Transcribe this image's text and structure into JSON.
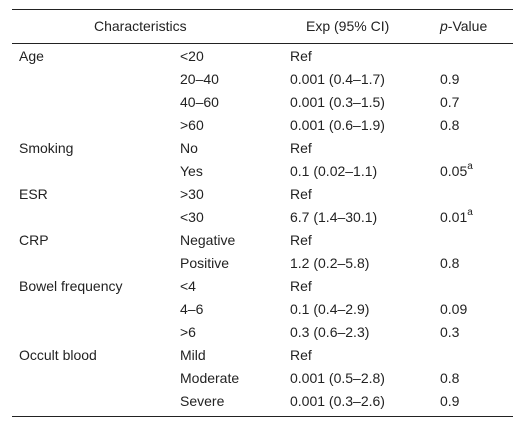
{
  "header": {
    "characteristics": "Characteristics",
    "exp": "Exp (95% CI)",
    "p_italic": "p",
    "p_rest": "-Value"
  },
  "rows": [
    {
      "group": "Age",
      "level": "<20",
      "exp": "Ref",
      "p": "",
      "sup": ""
    },
    {
      "group": "",
      "level": "20–40",
      "exp": "0.001 (0.4–1.7)",
      "p": "0.9",
      "sup": ""
    },
    {
      "group": "",
      "level": "40–60",
      "exp": "0.001 (0.3–1.5)",
      "p": "0.7",
      "sup": ""
    },
    {
      "group": "",
      "level": ">60",
      "exp": "0.001 (0.6–1.9)",
      "p": "0.8",
      "sup": ""
    },
    {
      "group": "Smoking",
      "level": "No",
      "exp": "Ref",
      "p": "",
      "sup": ""
    },
    {
      "group": "",
      "level": "Yes",
      "exp": "0.1 (0.02–1.1)",
      "p": "0.05",
      "sup": "a"
    },
    {
      "group": "ESR",
      "level": ">30",
      "exp": "Ref",
      "p": "",
      "sup": ""
    },
    {
      "group": "",
      "level": "<30",
      "exp": "6.7 (1.4–30.1)",
      "p": "0.01",
      "sup": "a"
    },
    {
      "group": "CRP",
      "level": "Negative",
      "exp": "Ref",
      "p": "",
      "sup": ""
    },
    {
      "group": "",
      "level": "Positive",
      "exp": "1.2 (0.2–5.8)",
      "p": "0.8",
      "sup": ""
    },
    {
      "group": "Bowel frequency",
      "level": "<4",
      "exp": "Ref",
      "p": "",
      "sup": ""
    },
    {
      "group": "",
      "level": "4–6",
      "exp": "0.1 (0.4–2.9)",
      "p": "0.09",
      "sup": ""
    },
    {
      "group": "",
      "level": ">6",
      "exp": "0.3 (0.6–2.3)",
      "p": "0.3",
      "sup": ""
    },
    {
      "group": "Occult blood",
      "level": "Mild",
      "exp": "Ref",
      "p": "",
      "sup": ""
    },
    {
      "group": "",
      "level": "Moderate",
      "exp": "0.001 (0.5–2.8)",
      "p": "0.8",
      "sup": ""
    },
    {
      "group": "",
      "level": "Severe",
      "exp": "0.001 (0.3–2.6)",
      "p": "0.9",
      "sup": ""
    }
  ]
}
